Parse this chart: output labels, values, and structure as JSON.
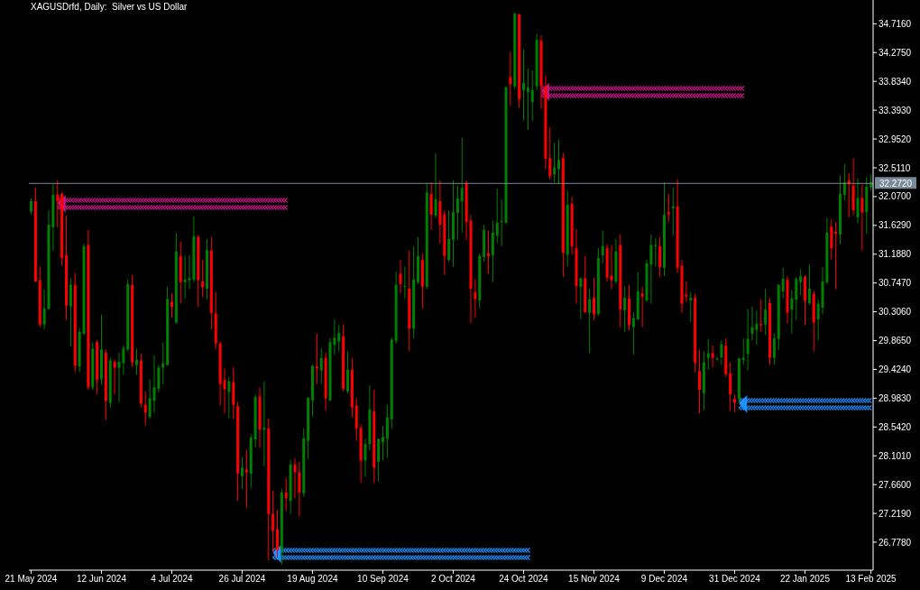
{
  "chart_data": {
    "type": "candlestick",
    "title": "XAGUSDrfd, Daily:  Silver vs US Dollar",
    "categories": [
      "21 May 2024",
      null,
      null,
      null,
      null,
      null,
      null,
      null,
      null,
      null,
      null,
      null,
      null,
      null,
      null,
      null,
      "12 Jun 2024",
      null,
      null,
      null,
      null,
      null,
      null,
      null,
      null,
      null,
      null,
      null,
      null,
      null,
      null,
      null,
      "4 Jul 2024",
      null,
      null,
      null,
      null,
      null,
      null,
      null,
      null,
      null,
      null,
      null,
      null,
      null,
      null,
      null,
      "26 Jul 2024",
      null,
      null,
      null,
      null,
      null,
      null,
      null,
      null,
      null,
      null,
      null,
      null,
      null,
      null,
      null,
      "19 Aug 2024",
      null,
      null,
      null,
      null,
      null,
      null,
      null,
      null,
      null,
      null,
      null,
      null,
      null,
      null,
      null,
      "10 Sep 2024",
      null,
      null,
      null,
      null,
      null,
      null,
      null,
      null,
      null,
      null,
      null,
      null,
      null,
      null,
      null,
      "2 Oct 2024",
      null,
      null,
      null,
      null,
      null,
      null,
      null,
      null,
      null,
      null,
      null,
      null,
      null,
      null,
      null,
      "24 Oct 2024",
      null,
      null,
      null,
      null,
      null,
      null,
      null,
      null,
      null,
      null,
      null,
      null,
      null,
      null,
      null,
      "15 Nov 2024",
      null,
      null,
      null,
      null,
      null,
      null,
      null,
      null,
      null,
      null,
      null,
      null,
      null,
      null,
      null,
      "9 Dec 2024",
      null,
      null,
      null,
      null,
      null,
      null,
      null,
      null,
      null,
      null,
      null,
      null,
      null,
      null,
      null,
      "31 Dec 2024",
      null,
      null,
      null,
      null,
      null,
      null,
      null,
      null,
      null,
      null,
      null,
      null,
      null,
      null,
      null,
      "22 Jan 2025",
      null,
      null,
      null,
      null,
      null,
      null,
      null,
      null,
      null,
      null,
      null,
      null,
      null,
      null,
      "13 Feb 2025"
    ],
    "ohlc": [
      [
        31.84,
        32.04,
        31.8,
        32.0
      ],
      [
        32.0,
        32.21,
        30.76,
        30.77
      ],
      [
        30.79,
        31.0,
        30.07,
        30.11
      ],
      [
        30.11,
        30.64,
        30.04,
        30.36
      ],
      [
        30.35,
        31.86,
        30.34,
        31.64
      ],
      [
        31.6,
        32.26,
        31.24,
        32.1
      ],
      [
        32.1,
        32.32,
        31.6,
        32.0
      ],
      [
        32.11,
        32.14,
        31.01,
        31.13
      ],
      [
        31.17,
        31.78,
        30.18,
        30.4
      ],
      [
        30.39,
        30.82,
        29.77,
        30.72
      ],
      [
        30.72,
        30.9,
        29.38,
        29.48
      ],
      [
        29.47,
        30.06,
        29.38,
        30.0
      ],
      [
        29.97,
        31.35,
        29.95,
        31.31
      ],
      [
        31.33,
        31.56,
        29.11,
        29.15
      ],
      [
        29.15,
        29.84,
        29.11,
        29.74
      ],
      [
        29.84,
        29.87,
        29.04,
        29.26
      ],
      [
        29.27,
        30.26,
        29.19,
        29.73
      ],
      [
        29.68,
        29.73,
        28.65,
        28.94
      ],
      [
        28.91,
        29.6,
        28.83,
        29.56
      ],
      [
        29.54,
        29.57,
        29.04,
        29.45
      ],
      [
        29.45,
        29.68,
        28.92,
        29.54
      ],
      [
        29.52,
        29.79,
        29.34,
        29.75
      ],
      [
        29.73,
        30.8,
        29.7,
        30.73
      ],
      [
        30.72,
        30.87,
        29.46,
        29.53
      ],
      [
        29.49,
        29.74,
        29.34,
        29.57
      ],
      [
        29.56,
        29.67,
        28.84,
        28.9
      ],
      [
        28.88,
        29.09,
        28.57,
        28.76
      ],
      [
        28.7,
        29.27,
        28.67,
        28.98
      ],
      [
        28.94,
        29.64,
        28.76,
        29.15
      ],
      [
        29.13,
        29.49,
        29.07,
        29.45
      ],
      [
        29.45,
        29.84,
        29.2,
        29.52
      ],
      [
        29.49,
        30.69,
        29.48,
        30.5
      ],
      [
        30.46,
        30.59,
        30.21,
        30.38
      ],
      [
        30.14,
        31.51,
        30.13,
        31.23
      ],
      [
        31.16,
        31.38,
        30.43,
        30.76
      ],
      [
        30.76,
        31.16,
        30.51,
        30.8
      ],
      [
        30.79,
        31.17,
        30.65,
        30.82
      ],
      [
        30.8,
        31.77,
        30.76,
        31.46
      ],
      [
        31.45,
        31.48,
        30.38,
        30.79
      ],
      [
        30.77,
        31.1,
        30.53,
        30.68
      ],
      [
        30.66,
        31.42,
        30.5,
        31.25
      ],
      [
        31.24,
        31.45,
        30.04,
        30.29
      ],
      [
        30.28,
        30.61,
        29.74,
        29.82
      ],
      [
        29.82,
        29.85,
        28.87,
        29.2
      ],
      [
        29.26,
        29.44,
        28.75,
        29.12
      ],
      [
        29.08,
        29.31,
        28.67,
        29.24
      ],
      [
        29.23,
        29.46,
        28.66,
        28.88
      ],
      [
        28.86,
        28.93,
        27.41,
        27.83
      ],
      [
        27.79,
        28.08,
        27.59,
        27.92
      ],
      [
        27.89,
        28.19,
        27.31,
        27.85
      ],
      [
        27.83,
        28.43,
        27.61,
        28.38
      ],
      [
        28.35,
        29.04,
        28.23,
        29.0
      ],
      [
        29.01,
        29.15,
        28.22,
        28.5
      ],
      [
        28.5,
        29.24,
        27.94,
        28.53
      ],
      [
        28.52,
        28.67,
        26.5,
        27.21
      ],
      [
        27.21,
        27.57,
        26.62,
        26.95
      ],
      [
        26.98,
        27.27,
        26.55,
        26.66
      ],
      [
        26.66,
        27.6,
        26.43,
        27.54
      ],
      [
        27.54,
        27.76,
        27.25,
        27.45
      ],
      [
        27.41,
        28.04,
        27.21,
        27.97
      ],
      [
        27.97,
        28.06,
        27.45,
        27.85
      ],
      [
        27.85,
        28.01,
        27.17,
        27.54
      ],
      [
        27.53,
        28.52,
        27.47,
        28.37
      ],
      [
        28.33,
        29.0,
        28.05,
        28.99
      ],
      [
        28.95,
        29.49,
        28.71,
        29.48
      ],
      [
        29.47,
        29.97,
        29.2,
        29.44
      ],
      [
        29.41,
        29.75,
        29.2,
        29.6
      ],
      [
        29.6,
        29.68,
        28.79,
        28.98
      ],
      [
        28.95,
        29.9,
        28.94,
        29.84
      ],
      [
        29.8,
        30.19,
        29.65,
        29.91
      ],
      [
        29.85,
        30.1,
        29.7,
        29.98
      ],
      [
        29.93,
        30.11,
        29.09,
        29.13
      ],
      [
        29.09,
        29.7,
        29.06,
        29.42
      ],
      [
        29.42,
        29.6,
        28.69,
        28.84
      ],
      [
        28.87,
        28.98,
        28.33,
        28.52
      ],
      [
        28.53,
        28.58,
        27.69,
        28.03
      ],
      [
        28.03,
        28.36,
        27.78,
        28.28
      ],
      [
        28.28,
        29.18,
        28.18,
        28.81
      ],
      [
        28.78,
        29.11,
        27.68,
        27.92
      ],
      [
        28.01,
        28.37,
        27.71,
        28.36
      ],
      [
        28.31,
        28.56,
        28.03,
        28.39
      ],
      [
        28.36,
        28.88,
        28.07,
        28.69
      ],
      [
        28.66,
        29.91,
        28.52,
        29.88
      ],
      [
        29.86,
        30.92,
        29.82,
        30.72
      ],
      [
        30.89,
        31.1,
        30.59,
        30.73
      ],
      [
        30.69,
        31.0,
        30.51,
        30.7
      ],
      [
        30.66,
        31.24,
        29.7,
        30.05
      ],
      [
        30.05,
        31.31,
        29.9,
        30.8
      ],
      [
        30.76,
        31.45,
        30.73,
        31.16
      ],
      [
        31.1,
        31.2,
        30.36,
        30.69
      ],
      [
        30.69,
        32.28,
        30.65,
        32.13
      ],
      [
        32.11,
        32.29,
        31.56,
        31.79
      ],
      [
        31.78,
        32.73,
        31.74,
        32.03
      ],
      [
        32.0,
        32.32,
        31.35,
        31.64
      ],
      [
        31.8,
        31.86,
        30.87,
        31.16
      ],
      [
        31.1,
        31.86,
        31.07,
        31.42
      ],
      [
        31.41,
        32.32,
        30.99,
        31.83
      ],
      [
        31.82,
        32.24,
        31.41,
        32.04
      ],
      [
        32.0,
        32.97,
        31.52,
        32.2
      ],
      [
        32.28,
        32.32,
        31.41,
        31.68
      ],
      [
        31.7,
        31.79,
        30.13,
        30.66
      ],
      [
        30.61,
        30.8,
        30.22,
        30.5
      ],
      [
        30.48,
        31.2,
        30.36,
        31.16
      ],
      [
        31.14,
        31.64,
        31.07,
        31.56
      ],
      [
        31.2,
        31.55,
        30.89,
        31.16
      ],
      [
        31.17,
        31.7,
        30.76,
        31.52
      ],
      [
        31.47,
        32.19,
        31.36,
        31.67
      ],
      [
        31.68,
        32.03,
        31.31,
        31.7
      ],
      [
        31.67,
        33.76,
        31.65,
        33.74
      ],
      [
        33.9,
        34.29,
        33.46,
        33.79
      ],
      [
        33.76,
        34.89,
        33.72,
        34.87
      ],
      [
        34.86,
        34.87,
        33.43,
        33.56
      ],
      [
        33.7,
        34.32,
        33.24,
        33.81
      ],
      [
        33.67,
        34.03,
        33.09,
        33.74
      ],
      [
        33.52,
        34.0,
        33.23,
        33.7
      ],
      [
        33.76,
        34.56,
        33.7,
        34.47
      ],
      [
        34.46,
        34.54,
        33.41,
        33.76
      ],
      [
        33.76,
        33.92,
        32.49,
        32.65
      ],
      [
        32.66,
        33.13,
        32.33,
        32.38
      ],
      [
        32.41,
        32.89,
        32.29,
        32.52
      ],
      [
        32.49,
        32.94,
        32.26,
        32.63
      ],
      [
        32.66,
        32.74,
        30.84,
        31.21
      ],
      [
        31.18,
        32.16,
        31.0,
        31.94
      ],
      [
        31.96,
        32.07,
        31.18,
        31.31
      ],
      [
        31.28,
        31.57,
        30.43,
        30.7
      ],
      [
        30.69,
        30.83,
        30.19,
        30.82
      ],
      [
        30.82,
        31.16,
        30.29,
        30.3
      ],
      [
        30.29,
        30.66,
        29.67,
        30.5
      ],
      [
        30.52,
        30.83,
        30.18,
        30.27
      ],
      [
        30.27,
        31.28,
        30.25,
        31.13
      ],
      [
        31.17,
        31.55,
        31.04,
        31.31
      ],
      [
        31.28,
        31.34,
        30.77,
        30.83
      ],
      [
        30.86,
        31.33,
        30.65,
        30.79
      ],
      [
        30.77,
        31.42,
        30.73,
        31.23
      ],
      [
        31.33,
        31.49,
        30.07,
        30.34
      ],
      [
        30.33,
        30.7,
        30.0,
        30.52
      ],
      [
        30.51,
        30.72,
        30.02,
        30.1
      ],
      [
        30.07,
        30.3,
        29.65,
        30.21
      ],
      [
        30.19,
        30.91,
        30.18,
        30.62
      ],
      [
        30.59,
        30.69,
        30.07,
        30.54
      ],
      [
        30.48,
        31.1,
        30.46,
        31.05
      ],
      [
        31.03,
        31.49,
        30.43,
        31.33
      ],
      [
        31.31,
        31.43,
        31.0,
        31.33
      ],
      [
        31.31,
        31.45,
        30.84,
        30.99
      ],
      [
        30.98,
        32.29,
        30.85,
        31.79
      ],
      [
        31.83,
        32.11,
        31.69,
        31.8
      ],
      [
        31.89,
        32.21,
        31.47,
        31.92
      ],
      [
        31.92,
        32.33,
        30.9,
        30.98
      ],
      [
        31.01,
        31.1,
        30.29,
        30.43
      ],
      [
        30.57,
        30.77,
        30.46,
        30.54
      ],
      [
        30.48,
        30.61,
        30.15,
        30.52
      ],
      [
        30.52,
        30.58,
        29.38,
        29.52
      ],
      [
        29.4,
        29.73,
        28.75,
        29.11
      ],
      [
        29.06,
        29.7,
        28.8,
        29.53
      ],
      [
        29.6,
        29.89,
        29.42,
        29.67
      ],
      [
        29.67,
        29.79,
        29.46,
        29.6
      ],
      [
        29.59,
        29.62,
        29.56,
        29.59
      ],
      [
        29.61,
        29.87,
        29.49,
        29.81
      ],
      [
        29.79,
        29.9,
        29.31,
        29.35
      ],
      [
        29.36,
        29.53,
        28.79,
        29.04
      ],
      [
        28.97,
        29.04,
        28.77,
        28.91
      ],
      [
        28.97,
        29.6,
        28.91,
        29.59
      ],
      [
        29.57,
        29.9,
        29.49,
        29.6
      ],
      [
        29.66,
        30.35,
        29.41,
        29.89
      ],
      [
        29.97,
        30.39,
        29.87,
        30.07
      ],
      [
        30.03,
        30.32,
        29.8,
        30.12
      ],
      [
        30.12,
        30.5,
        30.0,
        30.1
      ],
      [
        30.11,
        30.66,
        29.95,
        30.34
      ],
      [
        30.44,
        30.51,
        29.49,
        29.6
      ],
      [
        29.6,
        29.98,
        29.5,
        29.9
      ],
      [
        29.89,
        30.73,
        29.72,
        30.72
      ],
      [
        30.62,
        30.98,
        30.51,
        30.81
      ],
      [
        30.8,
        30.85,
        30.13,
        30.29
      ],
      [
        30.34,
        30.64,
        29.97,
        30.51
      ],
      [
        30.49,
        30.84,
        30.18,
        30.81
      ],
      [
        30.76,
        30.96,
        30.56,
        30.85
      ],
      [
        30.84,
        30.87,
        30.1,
        30.47
      ],
      [
        30.44,
        31.03,
        30.41,
        30.66
      ],
      [
        30.58,
        30.63,
        29.7,
        30.14
      ],
      [
        30.19,
        30.5,
        29.87,
        30.43
      ],
      [
        30.37,
        30.99,
        30.27,
        30.77
      ],
      [
        30.76,
        31.74,
        30.73,
        31.52
      ],
      [
        31.61,
        31.72,
        31.11,
        31.28
      ],
      [
        31.53,
        31.68,
        30.65,
        31.5
      ],
      [
        31.49,
        32.39,
        31.34,
        32.11
      ],
      [
        32.1,
        32.57,
        32.01,
        32.29
      ],
      [
        32.32,
        32.43,
        31.75,
        32.26
      ],
      [
        32.24,
        32.66,
        31.78,
        31.86
      ],
      [
        31.75,
        32.35,
        31.66,
        32.05
      ],
      [
        32.05,
        32.25,
        31.24,
        31.83
      ],
      [
        31.83,
        32.37,
        31.5,
        32.22
      ],
      [
        32.21,
        32.41,
        32.16,
        32.29
      ]
    ],
    "colors": [
      "#008000",
      "#ff0000",
      "#ff0000",
      "#008000",
      "#008000",
      "#008000",
      "#ff0000",
      "#ff0000",
      "#ff0000",
      "#008000",
      "#ff0000",
      "#008000",
      "#008000",
      "#ff0000",
      "#008000",
      "#ff0000",
      "#008000",
      "#ff0000",
      "#008000",
      "#ff0000",
      "#008000",
      "#008000",
      "#008000",
      "#ff0000",
      "#008000",
      "#ff0000",
      "#ff0000",
      "#008000",
      "#008000",
      "#008000",
      "#008000",
      "#008000",
      "#ff0000",
      "#008000",
      "#ff0000",
      "#008000",
      "#008000",
      "#008000",
      "#ff0000",
      "#ff0000",
      "#008000",
      "#ff0000",
      "#ff0000",
      "#ff0000",
      "#ff0000",
      "#008000",
      "#ff0000",
      "#ff0000",
      "#008000",
      "#ff0000",
      "#008000",
      "#008000",
      "#ff0000",
      "#008000",
      "#ff0000",
      "#ff0000",
      "#ff0000",
      "#008000",
      "#ff0000",
      "#008000",
      "#ff0000",
      "#ff0000",
      "#008000",
      "#008000",
      "#008000",
      "#ff0000",
      "#008000",
      "#ff0000",
      "#008000",
      "#008000",
      "#008000",
      "#ff0000",
      "#008000",
      "#ff0000",
      "#ff0000",
      "#ff0000",
      "#008000",
      "#008000",
      "#ff0000",
      "#008000",
      "#008000",
      "#008000",
      "#008000",
      "#008000",
      "#ff0000",
      "#008000",
      "#ff0000",
      "#008000",
      "#008000",
      "#ff0000",
      "#008000",
      "#ff0000",
      "#008000",
      "#ff0000",
      "#ff0000",
      "#008000",
      "#008000",
      "#008000",
      "#008000",
      "#ff0000",
      "#ff0000",
      "#ff0000",
      "#008000",
      "#008000",
      "#ff0000",
      "#008000",
      "#008000",
      "#008000",
      "#008000",
      "#ff0000",
      "#008000",
      "#ff0000",
      "#008000",
      "#008000",
      "#008000",
      "#008000",
      "#ff0000",
      "#ff0000",
      "#ff0000",
      "#008000",
      "#008000",
      "#ff0000",
      "#008000",
      "#ff0000",
      "#ff0000",
      "#008000",
      "#ff0000",
      "#008000",
      "#ff0000",
      "#008000",
      "#008000",
      "#ff0000",
      "#ff0000",
      "#008000",
      "#ff0000",
      "#008000",
      "#ff0000",
      "#008000",
      "#008000",
      "#ff0000",
      "#008000",
      "#008000",
      "#008000",
      "#ff0000",
      "#008000",
      "#ff0000",
      "#008000",
      "#ff0000",
      "#ff0000",
      "#ff0000",
      "#008000",
      "#ff0000",
      "#ff0000",
      "#008000",
      "#008000",
      "#ff0000",
      "#008000",
      "#008000",
      "#ff0000",
      "#ff0000",
      "#ff0000",
      "#008000",
      "#008000",
      "#008000",
      "#008000",
      "#008000",
      "#ff0000",
      "#008000",
      "#ff0000",
      "#008000",
      "#008000",
      "#008000",
      "#ff0000",
      "#008000",
      "#008000",
      "#008000",
      "#ff0000",
      "#008000",
      "#ff0000",
      "#008000",
      "#008000",
      "#008000",
      "#ff0000",
      "#ff0000",
      "#008000",
      "#008000",
      "#ff0000",
      "#ff0000",
      "#008000",
      "#ff0000",
      "#008000",
      "#008000"
    ],
    "ylim": [
      26.35,
      35.08
    ],
    "yticks": [
      {
        "value": 26.778,
        "label": "26.7780"
      },
      {
        "value": 27.219,
        "label": "27.2190"
      },
      {
        "value": 27.66,
        "label": "27.6600"
      },
      {
        "value": 28.101,
        "label": "28.1010"
      },
      {
        "value": 28.542,
        "label": "28.5420"
      },
      {
        "value": 28.983,
        "label": "28.9830"
      },
      {
        "value": 29.424,
        "label": "29.4240"
      },
      {
        "value": 29.865,
        "label": "29.8650"
      },
      {
        "value": 30.306,
        "label": "30.3060"
      },
      {
        "value": 30.747,
        "label": "30.7470"
      },
      {
        "value": 31.188,
        "label": "31.1880"
      },
      {
        "value": 31.629,
        "label": "31.6290"
      },
      {
        "value": 32.07,
        "label": "32.0700"
      },
      {
        "value": 32.511,
        "label": "32.5110"
      },
      {
        "value": 32.952,
        "label": "32.9520"
      },
      {
        "value": 33.393,
        "label": "33.3930"
      },
      {
        "value": 33.834,
        "label": "33.8340"
      },
      {
        "value": 34.275,
        "label": "34.2750"
      },
      {
        "value": 34.716,
        "label": "34.7160"
      }
    ],
    "ref_lines": [
      {
        "axis": "y",
        "value": 32.272,
        "label": "32.2720",
        "color": "#778899"
      }
    ]
  }
}
